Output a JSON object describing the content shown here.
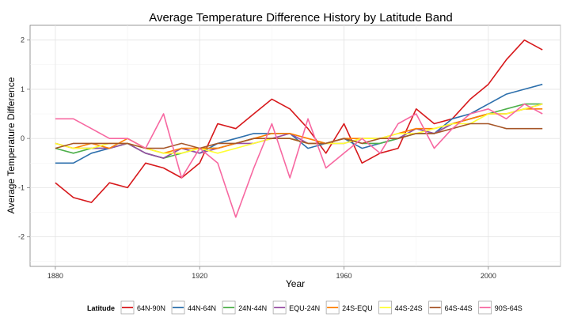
{
  "chart_data": {
    "type": "line",
    "title": "Average Temperature Difference History by Latitude Band",
    "xlabel": "Year",
    "ylabel": "Average Temperature Difference",
    "xlim": [
      1880,
      2015
    ],
    "ylim": [
      -2.6,
      2.3
    ],
    "x_ticks": [
      1880,
      1920,
      1960,
      2000
    ],
    "y_ticks": [
      -2,
      -1,
      0,
      1,
      2
    ],
    "grid": true,
    "legend_position": "bottom",
    "legend_title": "Latitude",
    "x": [
      1880,
      1885,
      1890,
      1895,
      1900,
      1905,
      1910,
      1915,
      1920,
      1925,
      1930,
      1935,
      1940,
      1945,
      1950,
      1955,
      1960,
      1965,
      1970,
      1975,
      1980,
      1985,
      1990,
      1995,
      2000,
      2005,
      2010,
      2015
    ],
    "series": [
      {
        "name": "64N-90N",
        "color": "#d7191c",
        "values": [
          -0.9,
          -1.2,
          -1.3,
          -0.9,
          -1.0,
          -0.5,
          -0.6,
          -0.8,
          -0.5,
          0.3,
          0.2,
          0.5,
          0.8,
          0.6,
          0.2,
          -0.3,
          0.3,
          -0.5,
          -0.3,
          -0.2,
          0.6,
          0.3,
          0.4,
          0.8,
          1.1,
          1.6,
          2.0,
          1.8
        ]
      },
      {
        "name": "44N-64N",
        "color": "#2c6fac",
        "values": [
          -0.5,
          -0.5,
          -0.3,
          -0.2,
          -0.1,
          -0.3,
          -0.4,
          -0.2,
          -0.3,
          -0.1,
          0.0,
          0.1,
          0.1,
          0.1,
          -0.2,
          -0.1,
          0.0,
          -0.2,
          -0.1,
          0.0,
          0.2,
          0.1,
          0.4,
          0.5,
          0.7,
          0.9,
          1.0,
          1.1
        ]
      },
      {
        "name": "24N-44N",
        "color": "#4daf4a",
        "values": [
          -0.2,
          -0.3,
          -0.2,
          -0.2,
          -0.1,
          -0.3,
          -0.4,
          -0.3,
          -0.2,
          -0.2,
          -0.1,
          0.0,
          0.0,
          0.0,
          -0.1,
          -0.1,
          0.0,
          -0.1,
          -0.1,
          0.0,
          0.1,
          0.1,
          0.3,
          0.4,
          0.5,
          0.6,
          0.7,
          0.7
        ]
      },
      {
        "name": "EQU-24N",
        "color": "#984ea3",
        "values": [
          -0.1,
          -0.2,
          -0.2,
          -0.2,
          -0.1,
          -0.3,
          -0.4,
          -0.2,
          -0.3,
          -0.2,
          -0.1,
          -0.1,
          0.0,
          0.1,
          -0.1,
          -0.1,
          -0.1,
          0.0,
          0.0,
          0.0,
          0.2,
          0.1,
          0.3,
          0.4,
          0.5,
          0.5,
          0.6,
          0.7
        ]
      },
      {
        "name": "24S-EQU",
        "color": "#ff7f00",
        "values": [
          -0.1,
          -0.2,
          -0.1,
          -0.2,
          0.0,
          -0.2,
          -0.3,
          -0.2,
          -0.2,
          -0.2,
          -0.1,
          0.0,
          0.1,
          0.1,
          0.0,
          -0.1,
          0.0,
          0.0,
          0.0,
          0.1,
          0.2,
          0.2,
          0.3,
          0.4,
          0.5,
          0.5,
          0.6,
          0.6
        ]
      },
      {
        "name": "44S-24S",
        "color": "#ffff33",
        "values": [
          -0.1,
          -0.2,
          -0.2,
          -0.1,
          -0.1,
          -0.2,
          -0.3,
          -0.3,
          -0.2,
          -0.3,
          -0.2,
          -0.1,
          0.0,
          0.0,
          -0.1,
          -0.1,
          -0.1,
          0.0,
          0.0,
          0.1,
          0.1,
          0.2,
          0.3,
          0.3,
          0.5,
          0.5,
          0.6,
          0.7
        ]
      },
      {
        "name": "64S-44S",
        "color": "#a65628",
        "values": [
          -0.2,
          -0.1,
          -0.1,
          -0.1,
          -0.1,
          -0.2,
          -0.2,
          -0.1,
          -0.2,
          -0.1,
          -0.1,
          0.0,
          0.0,
          0.0,
          -0.1,
          -0.1,
          0.0,
          -0.1,
          0.0,
          0.0,
          0.1,
          0.1,
          0.2,
          0.3,
          0.3,
          0.2,
          0.2,
          0.2
        ]
      },
      {
        "name": "90S-64S",
        "color": "#f768a1",
        "values": [
          0.4,
          0.4,
          0.2,
          0.0,
          0.0,
          -0.2,
          0.5,
          -0.8,
          -0.2,
          -0.5,
          -1.6,
          -0.6,
          0.3,
          -0.8,
          0.4,
          -0.6,
          -0.3,
          0.0,
          -0.3,
          0.3,
          0.5,
          -0.2,
          0.2,
          0.5,
          0.6,
          0.4,
          0.7,
          0.5
        ]
      }
    ]
  }
}
